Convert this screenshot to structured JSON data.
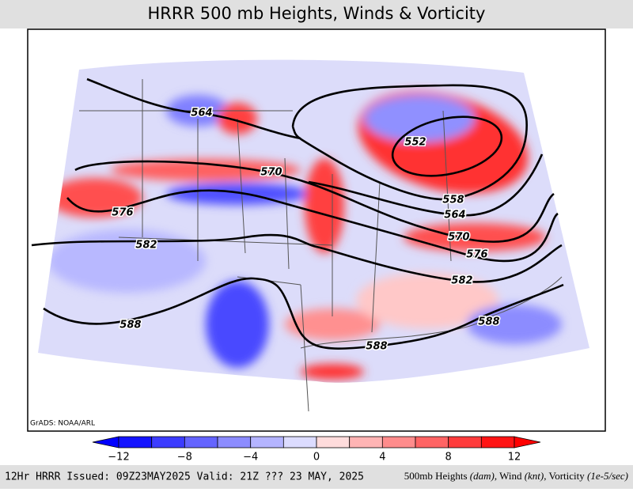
{
  "header": {
    "title": "HRRR 500 mb Heights, Winds & Vorticity"
  },
  "map": {
    "credit": "GrADS: NOAA/ARL",
    "contour_labels": [
      "564",
      "570",
      "576",
      "582",
      "588",
      "552",
      "558",
      "564",
      "570",
      "576",
      "582",
      "588",
      "588"
    ]
  },
  "colorbar": {
    "ticks": [
      "−12",
      "−8",
      "−4",
      "0",
      "4",
      "8",
      "12"
    ]
  },
  "footer": {
    "left": "12Hr HRRR Issued: 09Z23MAY2025 Valid: 21Z ??? 23 MAY, 2025",
    "right_parts": [
      "500mb Heights ",
      "(dam)",
      ", Wind ",
      "(knt)",
      ", Vorticity ",
      "(1e-5/sec)"
    ]
  }
}
